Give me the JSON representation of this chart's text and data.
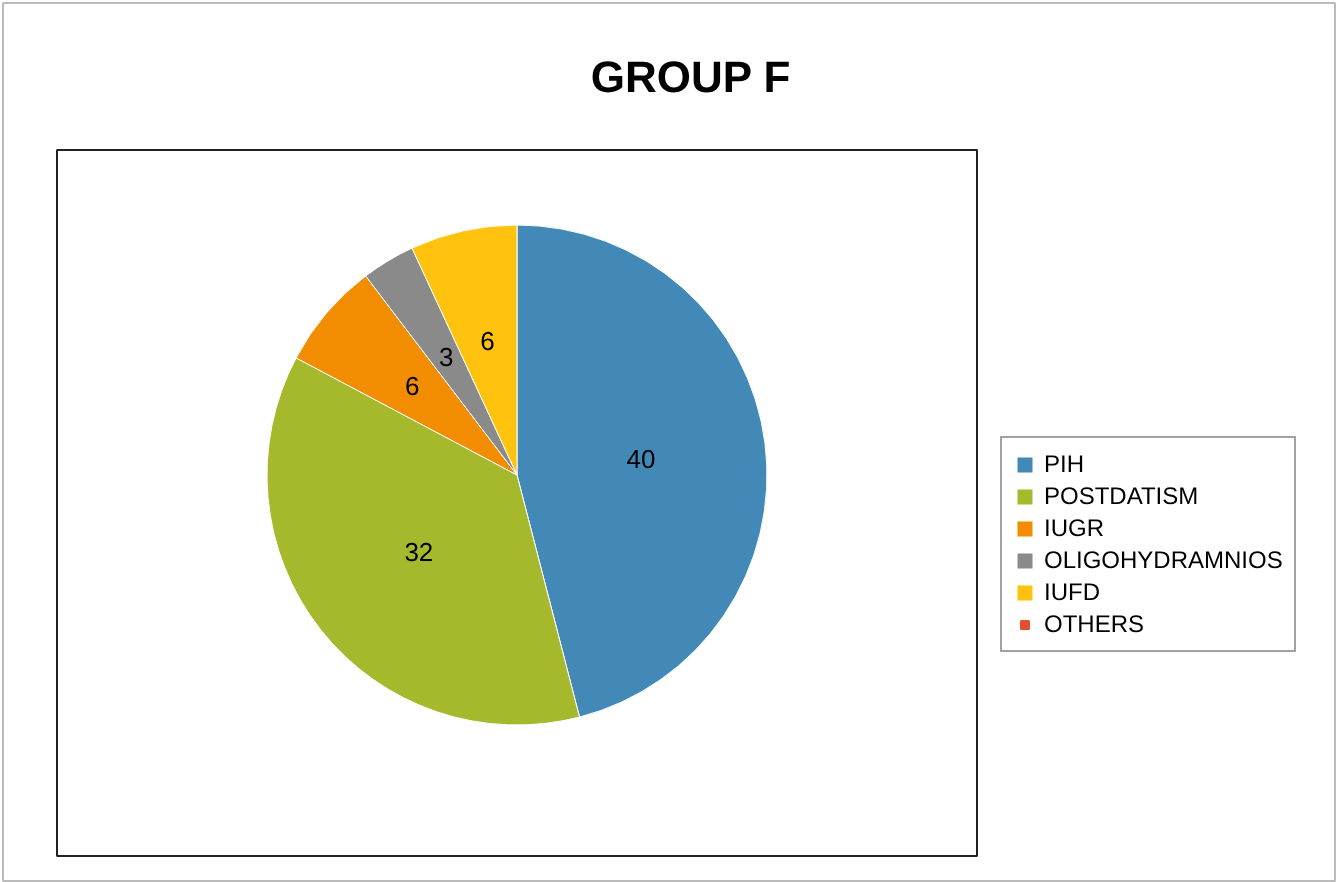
{
  "chart_data": {
    "type": "pie",
    "title": "GROUP F",
    "categories": [
      "PIH",
      "POSTDATISM",
      "IUGR",
      "OLIGOHYDRAMNIOS",
      "IUFD",
      "OTHERS"
    ],
    "values": [
      40,
      32,
      6,
      3,
      6,
      0
    ],
    "value_labels": [
      "40",
      "32",
      "6",
      "3",
      "6",
      null
    ],
    "colors": [
      "#4389b8",
      "#a6b82b",
      "#f28c00",
      "#8a8a8a",
      "#ffc20e",
      "#e0502a"
    ],
    "legend": "right"
  }
}
